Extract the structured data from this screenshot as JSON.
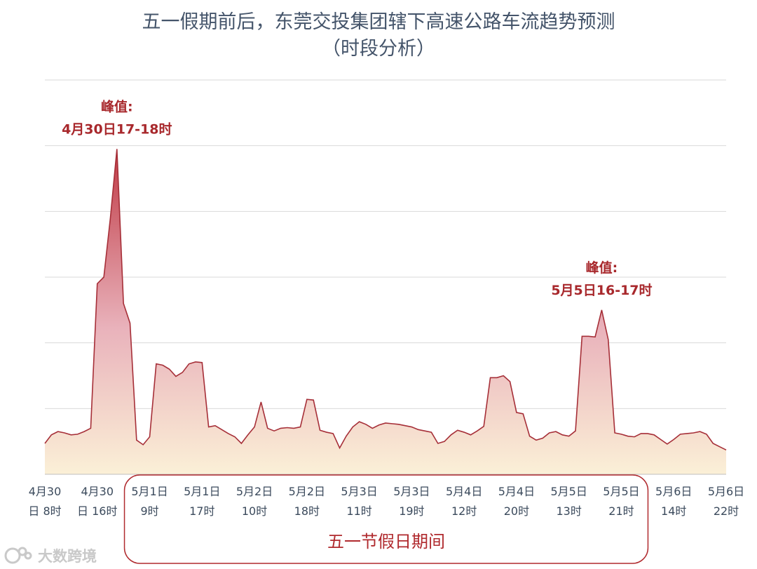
{
  "chart_data": {
    "type": "area",
    "title": "五一假期前后，东莞交投集团辖下高速公路车流趋势预测",
    "subtitle": "（时段分析）",
    "x_ticks": [
      {
        "line1": "4月30",
        "line2": "日 8时"
      },
      {
        "line1": "4月30",
        "line2": "日 16时"
      },
      {
        "line1": "5月1日",
        "line2": "9时"
      },
      {
        "line1": "5月1日",
        "line2": "17时"
      },
      {
        "line1": "5月2日",
        "line2": "10时"
      },
      {
        "line1": "5月2日",
        "line2": "18时"
      },
      {
        "line1": "5月3日",
        "line2": "11时"
      },
      {
        "line1": "5月3日",
        "line2": "19时"
      },
      {
        "line1": "5月4日",
        "line2": "12时"
      },
      {
        "line1": "5月4日",
        "line2": "20时"
      },
      {
        "line1": "5月5日",
        "line2": "13时"
      },
      {
        "line1": "5月5日",
        "line2": "21时"
      },
      {
        "line1": "5月6日",
        "line2": "14时"
      },
      {
        "line1": "5月6日",
        "line2": "22时"
      }
    ],
    "tick_every_hours": 8,
    "x_start": "4月30日 8时",
    "x_end": "5月6日 22时",
    "gridlines": 6,
    "grid": true,
    "ylim": [
      0,
      6
    ],
    "values": [
      0.47,
      0.6,
      0.65,
      0.63,
      0.6,
      0.61,
      0.65,
      0.7,
      2.9,
      3.0,
      3.9,
      4.95,
      2.6,
      2.3,
      0.52,
      0.45,
      0.57,
      1.68,
      1.66,
      1.6,
      1.49,
      1.55,
      1.68,
      1.71,
      1.7,
      0.72,
      0.74,
      0.68,
      0.62,
      0.57,
      0.47,
      0.6,
      0.72,
      1.1,
      0.7,
      0.66,
      0.7,
      0.71,
      0.7,
      0.72,
      1.14,
      1.13,
      0.67,
      0.64,
      0.62,
      0.4,
      0.58,
      0.72,
      0.8,
      0.76,
      0.7,
      0.75,
      0.78,
      0.77,
      0.76,
      0.74,
      0.72,
      0.68,
      0.66,
      0.64,
      0.47,
      0.5,
      0.6,
      0.67,
      0.64,
      0.6,
      0.66,
      0.73,
      1.47,
      1.47,
      1.5,
      1.41,
      0.94,
      0.92,
      0.58,
      0.52,
      0.55,
      0.63,
      0.65,
      0.6,
      0.58,
      0.66,
      2.1,
      2.1,
      2.09,
      2.5,
      2.05,
      0.63,
      0.61,
      0.58,
      0.57,
      0.62,
      0.62,
      0.6,
      0.53,
      0.46,
      0.53,
      0.61,
      0.62,
      0.63,
      0.65,
      0.61,
      0.47,
      0.42,
      0.37
    ],
    "annotations": [
      {
        "label": "峰值:",
        "detail": "4月30日17-18时",
        "index": 11
      },
      {
        "label": "峰值:",
        "detail": "5月5日16-17时",
        "index": 85
      }
    ],
    "holiday_label": "五一节假日期间",
    "holiday_range_ticks": [
      2,
      11
    ],
    "colors": {
      "fill_top": "#c03a45",
      "fill_mid": "#e9b2bb",
      "fill_bottom": "#fbf0d7",
      "line": "#a62f38",
      "grid": "#d9d9d9",
      "annotation": "#a8282c",
      "holiday_border": "#b02a2e"
    }
  },
  "watermark": {
    "icon": "bubble-logo-icon",
    "text": "大数跨境"
  }
}
